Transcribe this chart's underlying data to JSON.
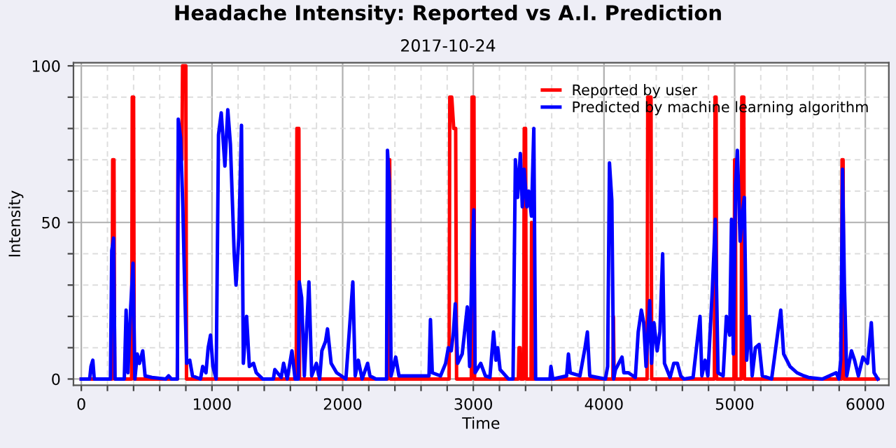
{
  "chart_data": {
    "type": "line",
    "title": "Headache Intensity: Reported vs A.I. Prediction",
    "subtitle": "2017-10-24",
    "xlabel": "Time",
    "ylabel": "Intensity",
    "xlim": [
      -60,
      6180
    ],
    "ylim": [
      -2,
      101
    ],
    "xticks": [
      0,
      {
        "value": 200,
        "label": null
      },
      {
        "value": 400,
        "label": null
      },
      {
        "value": 600,
        "label": null
      },
      {
        "value": 800,
        "label": null
      },
      1000,
      {
        "value": 1200,
        "label": null
      },
      {
        "value": 1400,
        "label": null
      },
      {
        "value": 1600,
        "label": null
      },
      {
        "value": 1800,
        "label": null
      },
      2000,
      {
        "value": 2200,
        "label": null
      },
      {
        "value": 2400,
        "label": null
      },
      {
        "value": 2600,
        "label": null
      },
      {
        "value": 2800,
        "label": null
      },
      3000,
      {
        "value": 3200,
        "label": null
      },
      {
        "value": 3400,
        "label": null
      },
      {
        "value": 3600,
        "label": null
      },
      {
        "value": 3800,
        "label": null
      },
      4000,
      {
        "value": 4200,
        "label": null
      },
      {
        "value": 4400,
        "label": null
      },
      {
        "value": 4600,
        "label": null
      },
      {
        "value": 4800,
        "label": null
      },
      5000,
      {
        "value": 5200,
        "label": null
      },
      {
        "value": 5400,
        "label": null
      },
      {
        "value": 5600,
        "label": null
      },
      {
        "value": 5800,
        "label": null
      },
      6000
    ],
    "yticks": [
      0,
      {
        "value": 10,
        "label": null
      },
      {
        "value": 20,
        "label": null
      },
      {
        "value": 30,
        "label": null
      },
      {
        "value": 40,
        "label": null
      },
      50,
      {
        "value": 60,
        "label": null
      },
      {
        "value": 70,
        "label": null
      },
      {
        "value": 80,
        "label": null
      },
      {
        "value": 90,
        "label": null
      },
      100
    ],
    "grid": true,
    "legend": "top right",
    "marker": "none",
    "line_style": "solid",
    "series": [
      {
        "name": "Reported by user",
        "color": "#ff0000",
        "x": [
          0,
          235,
          240,
          250,
          255,
          385,
          390,
          400,
          405,
          735,
          740,
          770,
          775,
          800,
          805,
          1645,
          1650,
          1665,
          1670,
          2345,
          2350,
          2360,
          2365,
          2815,
          2820,
          2835,
          2850,
          2865,
          2872,
          2985,
          2990,
          3005,
          3010,
          3345,
          3350,
          3358,
          3362,
          3385,
          3390,
          3400,
          3405,
          3442,
          3446,
          3452,
          4068,
          4072,
          4078,
          4330,
          4335,
          4360,
          4365,
          4845,
          4850,
          4858,
          4862,
          4995,
          5000,
          5005,
          5010,
          5050,
          5055,
          5070,
          5075,
          5818,
          5822,
          5830,
          5835,
          6096
        ],
        "values": [
          0,
          0,
          70,
          70,
          0,
          0,
          90,
          90,
          0,
          0,
          70,
          70,
          100,
          100,
          0,
          0,
          80,
          80,
          0,
          0,
          70,
          70,
          0,
          0,
          90,
          90,
          80,
          80,
          0,
          0,
          90,
          90,
          0,
          0,
          10,
          10,
          0,
          0,
          80,
          80,
          0,
          0,
          50,
          0,
          0,
          20,
          0,
          0,
          90,
          90,
          0,
          0,
          90,
          90,
          0,
          0,
          70,
          70,
          0,
          0,
          90,
          90,
          0,
          0,
          70,
          70,
          0,
          0
        ]
      },
      {
        "name": "Predicted by machine learning algorithm",
        "color": "#0000ff",
        "x": [
          0,
          64,
          74,
          88,
          99,
          223,
          233,
          247,
          258,
          329,
          343,
          357,
          378,
          396,
          410,
          428,
          445,
          470,
          488,
          541,
          647,
          668,
          689,
          735,
          742,
          760,
          777,
          788,
          806,
          830,
          851,
          912,
          929,
          954,
          971,
          989,
          1007,
          1032,
          1050,
          1071,
          1099,
          1121,
          1141,
          1170,
          1184,
          1205,
          1226,
          1240,
          1265,
          1286,
          1318,
          1339,
          1389,
          1470,
          1481,
          1530,
          1548,
          1576,
          1612,
          1636,
          1661,
          1668,
          1686,
          1707,
          1742,
          1763,
          1799,
          1824,
          1841,
          1869,
          1884,
          1912,
          1954,
          1990,
          2025,
          2078,
          2096,
          2120,
          2149,
          2191,
          2209,
          2255,
          2336,
          2343,
          2357,
          2371,
          2406,
          2431,
          2555,
          2661,
          2672,
          2686,
          2749,
          2788,
          2809,
          2831,
          2848,
          2862,
          2880,
          2915,
          2954,
          2972,
          2990,
          3004,
          3014,
          3057,
          3092,
          3127,
          3155,
          3173,
          3187,
          3205,
          3269,
          3304,
          3322,
          3339,
          3360,
          3375,
          3389,
          3410,
          3424,
          3445,
          3463,
          3477,
          3587,
          3594,
          3608,
          3714,
          3728,
          3742,
          3816,
          3855,
          3873,
          3891,
          4011,
          4028,
          4042,
          4060,
          4074,
          4088,
          4138,
          4152,
          4187,
          4240,
          4262,
          4286,
          4304,
          4322,
          4350,
          4364,
          4382,
          4407,
          4428,
          4449,
          4463,
          4506,
          4534,
          4562,
          4587,
          4612,
          4682,
          4735,
          4749,
          4774,
          4795,
          4830,
          4852,
          4873,
          4912,
          4937,
          4962,
          4976,
          4990,
          5007,
          5021,
          5042,
          5060,
          5074,
          5092,
          5113,
          5134,
          5159,
          5187,
          5212,
          5283,
          5353,
          5375,
          5424,
          5477,
          5530,
          5565,
          5671,
          5777,
          5798,
          5812,
          5826,
          5840,
          5858,
          5894,
          5918,
          5947,
          5982,
          6017,
          6046,
          6067,
          6096
        ],
        "values": [
          0,
          0,
          4,
          6,
          0,
          0,
          41,
          45,
          0,
          0,
          22,
          2,
          23,
          37,
          0,
          8,
          5,
          9,
          1,
          0.5,
          0,
          1,
          0,
          0,
          83,
          77,
          55,
          35,
          5,
          6,
          1,
          0,
          4,
          2,
          10,
          14,
          4,
          0,
          78,
          85,
          68,
          86,
          75,
          40,
          30,
          45,
          81,
          5,
          20,
          4,
          5,
          2,
          0,
          0,
          3,
          0.5,
          5,
          0,
          9,
          0,
          0,
          31,
          26,
          1,
          31,
          1,
          5,
          0,
          9,
          12,
          16,
          5,
          2,
          1,
          0,
          31,
          1,
          6,
          0,
          5,
          1,
          0,
          0,
          73,
          63,
          1,
          7,
          1,
          1,
          1,
          19,
          2,
          1,
          5,
          10,
          9,
          15,
          24,
          5,
          8,
          23,
          4,
          37,
          54,
          2,
          5,
          1,
          0.5,
          15,
          6,
          10,
          3,
          0,
          0,
          70,
          58,
          72,
          55,
          67,
          55,
          60,
          52,
          80,
          0,
          0,
          4,
          0,
          1,
          8,
          2,
          1,
          10,
          15,
          1,
          0,
          4,
          69,
          57,
          0,
          3,
          7,
          2,
          2,
          0.5,
          15,
          22,
          18,
          4,
          25,
          5,
          18,
          9,
          15,
          40,
          5,
          0.5,
          5,
          5,
          1,
          0,
          0.5,
          20,
          1,
          6,
          1,
          29,
          51,
          2,
          1,
          20,
          14,
          51,
          8,
          62,
          73,
          44,
          53,
          58,
          6,
          20,
          1,
          10,
          11,
          1,
          0,
          22,
          8,
          4,
          2,
          1,
          0.5,
          0,
          2,
          0,
          6,
          67,
          30,
          1,
          9,
          6,
          1,
          7,
          5,
          18,
          2,
          0
        ]
      }
    ]
  }
}
